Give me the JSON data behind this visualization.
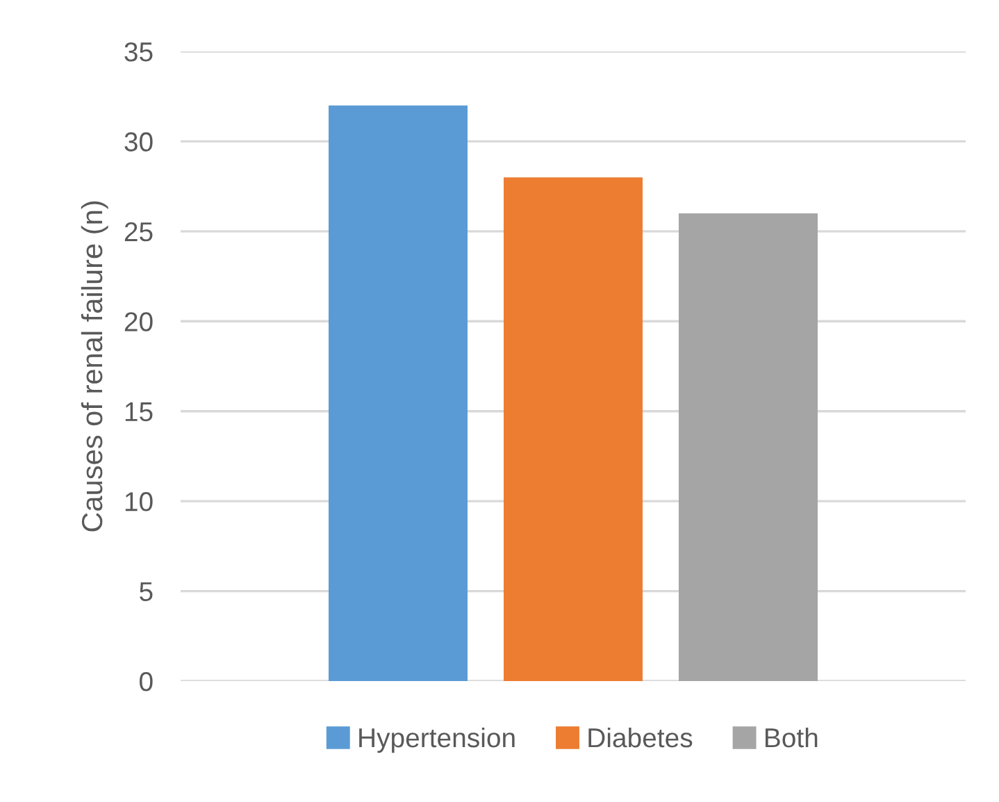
{
  "chart_data": {
    "type": "bar",
    "ylabel": "Causes of renal failure (n)",
    "categories": [
      null
    ],
    "series": [
      {
        "name": "Hypertension",
        "color": "#5b9bd5",
        "values": [
          32
        ]
      },
      {
        "name": "Diabetes",
        "color": "#ed7d31",
        "values": [
          28
        ]
      },
      {
        "name": "Both",
        "color": "#a5a5a5",
        "values": [
          26
        ]
      }
    ],
    "ylim": [
      0,
      35
    ],
    "yticks": [
      0,
      5,
      10,
      15,
      20,
      25,
      30,
      35
    ],
    "grid": "y",
    "legend": "bottom"
  }
}
